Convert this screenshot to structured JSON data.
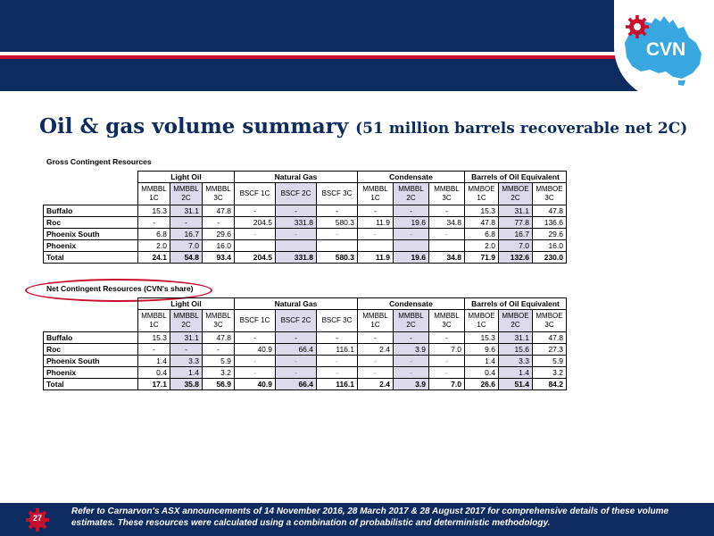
{
  "brand": {
    "logo_text": "CVN",
    "navy": "#0d2b5e",
    "red": "#c8102e",
    "australia_blue": "#39a8e0"
  },
  "slide": {
    "title": "Oil & gas volume summary",
    "subtitle": "(51 million barrels recoverable net 2C)",
    "page_number": "27",
    "footnote": "Refer to Carnarvon's ASX announcements of 14 November 2016, 28 March 2017 & 28 August 2017 for comprehensive details of these volume estimates. These resources were calculated using a combination of probabilistic and deterministic methodology."
  },
  "tables": [
    {
      "label": "Gross Contingent Resources",
      "groups": [
        "Light Oil",
        "Natural Gas",
        "Condensate",
        "Barrels of Oil Equivalent"
      ],
      "units": [
        "MMBBL 1C",
        "MMBBL 2C",
        "MMBBL 3C",
        "BSCF 1C",
        "BSCF 2C",
        "BSCF 3C",
        "MMBBL 1C",
        "MMBBL 2C",
        "MMBBL 3C",
        "MMBOE 1C",
        "MMBOE 2C",
        "MMBOE 3C"
      ],
      "rows": [
        {
          "name": "Buffalo",
          "cells": [
            "15.3",
            "31.1",
            "47.8",
            "-",
            "-",
            "-",
            "-",
            "-",
            "-",
            "15.3",
            "31.1",
            "47.8"
          ]
        },
        {
          "name": "Roc",
          "cells": [
            "-",
            "-",
            "-",
            "204.5",
            "331.8",
            "580.3",
            "11.9",
            "19.6",
            "34.8",
            "47.8",
            "77.8",
            "136.6"
          ]
        },
        {
          "name": "Phoenix South",
          "cells": [
            "6.8",
            "16.7",
            "29.6",
            "-",
            "-",
            "-",
            "-",
            "-",
            "-",
            "6.8",
            "16.7",
            "29.6"
          ]
        },
        {
          "name": "Phoenix",
          "cells": [
            "2.0",
            "7.0",
            "16.0",
            "",
            "",
            "",
            "",
            "",
            "",
            "2.0",
            "7.0",
            "16.0"
          ]
        },
        {
          "name": "Total",
          "cells": [
            "24.1",
            "54.8",
            "93.4",
            "204.5",
            "331.8",
            "580.3",
            "11.9",
            "19.6",
            "34.8",
            "71.9",
            "132.6",
            "230.0"
          ]
        }
      ]
    },
    {
      "label": "Net Contingent Resources (CVN's share)",
      "groups": [
        "Light Oil",
        "Natural Gas",
        "Condensate",
        "Barrels of Oil Equivalent"
      ],
      "units": [
        "MMBBL 1C",
        "MMBBL 2C",
        "MMBBL 3C",
        "BSCF 1C",
        "BSCF 2C",
        "BSCF 3C",
        "MMBBL 1C",
        "MMBBL 2C",
        "MMBBL 3C",
        "MMBOE 1C",
        "MMBOE 2C",
        "MMBOE 3C"
      ],
      "rows": [
        {
          "name": "Buffalo",
          "cells": [
            "15.3",
            "31.1",
            "47.8",
            "-",
            "-",
            "-",
            "-",
            "-",
            "-",
            "15.3",
            "31.1",
            "47.8"
          ]
        },
        {
          "name": "Roc",
          "cells": [
            "-",
            "-",
            "-",
            "40.9",
            "66.4",
            "116.1",
            "2.4",
            "3.9",
            "7.0",
            "9.6",
            "15.6",
            "27.3"
          ]
        },
        {
          "name": "Phoenix South",
          "cells": [
            "1.4",
            "3.3",
            "5.9",
            "-",
            "-",
            "-",
            "-",
            "-",
            "-",
            "1.4",
            "3.3",
            "5.9"
          ]
        },
        {
          "name": "Phoenix",
          "cells": [
            "0.4",
            "1.4",
            "3.2",
            "-",
            "-",
            "-",
            "-",
            "-",
            "-",
            "0.4",
            "1.4",
            "3.2"
          ]
        },
        {
          "name": "Total",
          "cells": [
            "17.1",
            "35.8",
            "56.9",
            "40.9",
            "66.4",
            "116.1",
            "2.4",
            "3.9",
            "7.0",
            "26.6",
            "51.4",
            "84.2"
          ]
        }
      ]
    }
  ]
}
